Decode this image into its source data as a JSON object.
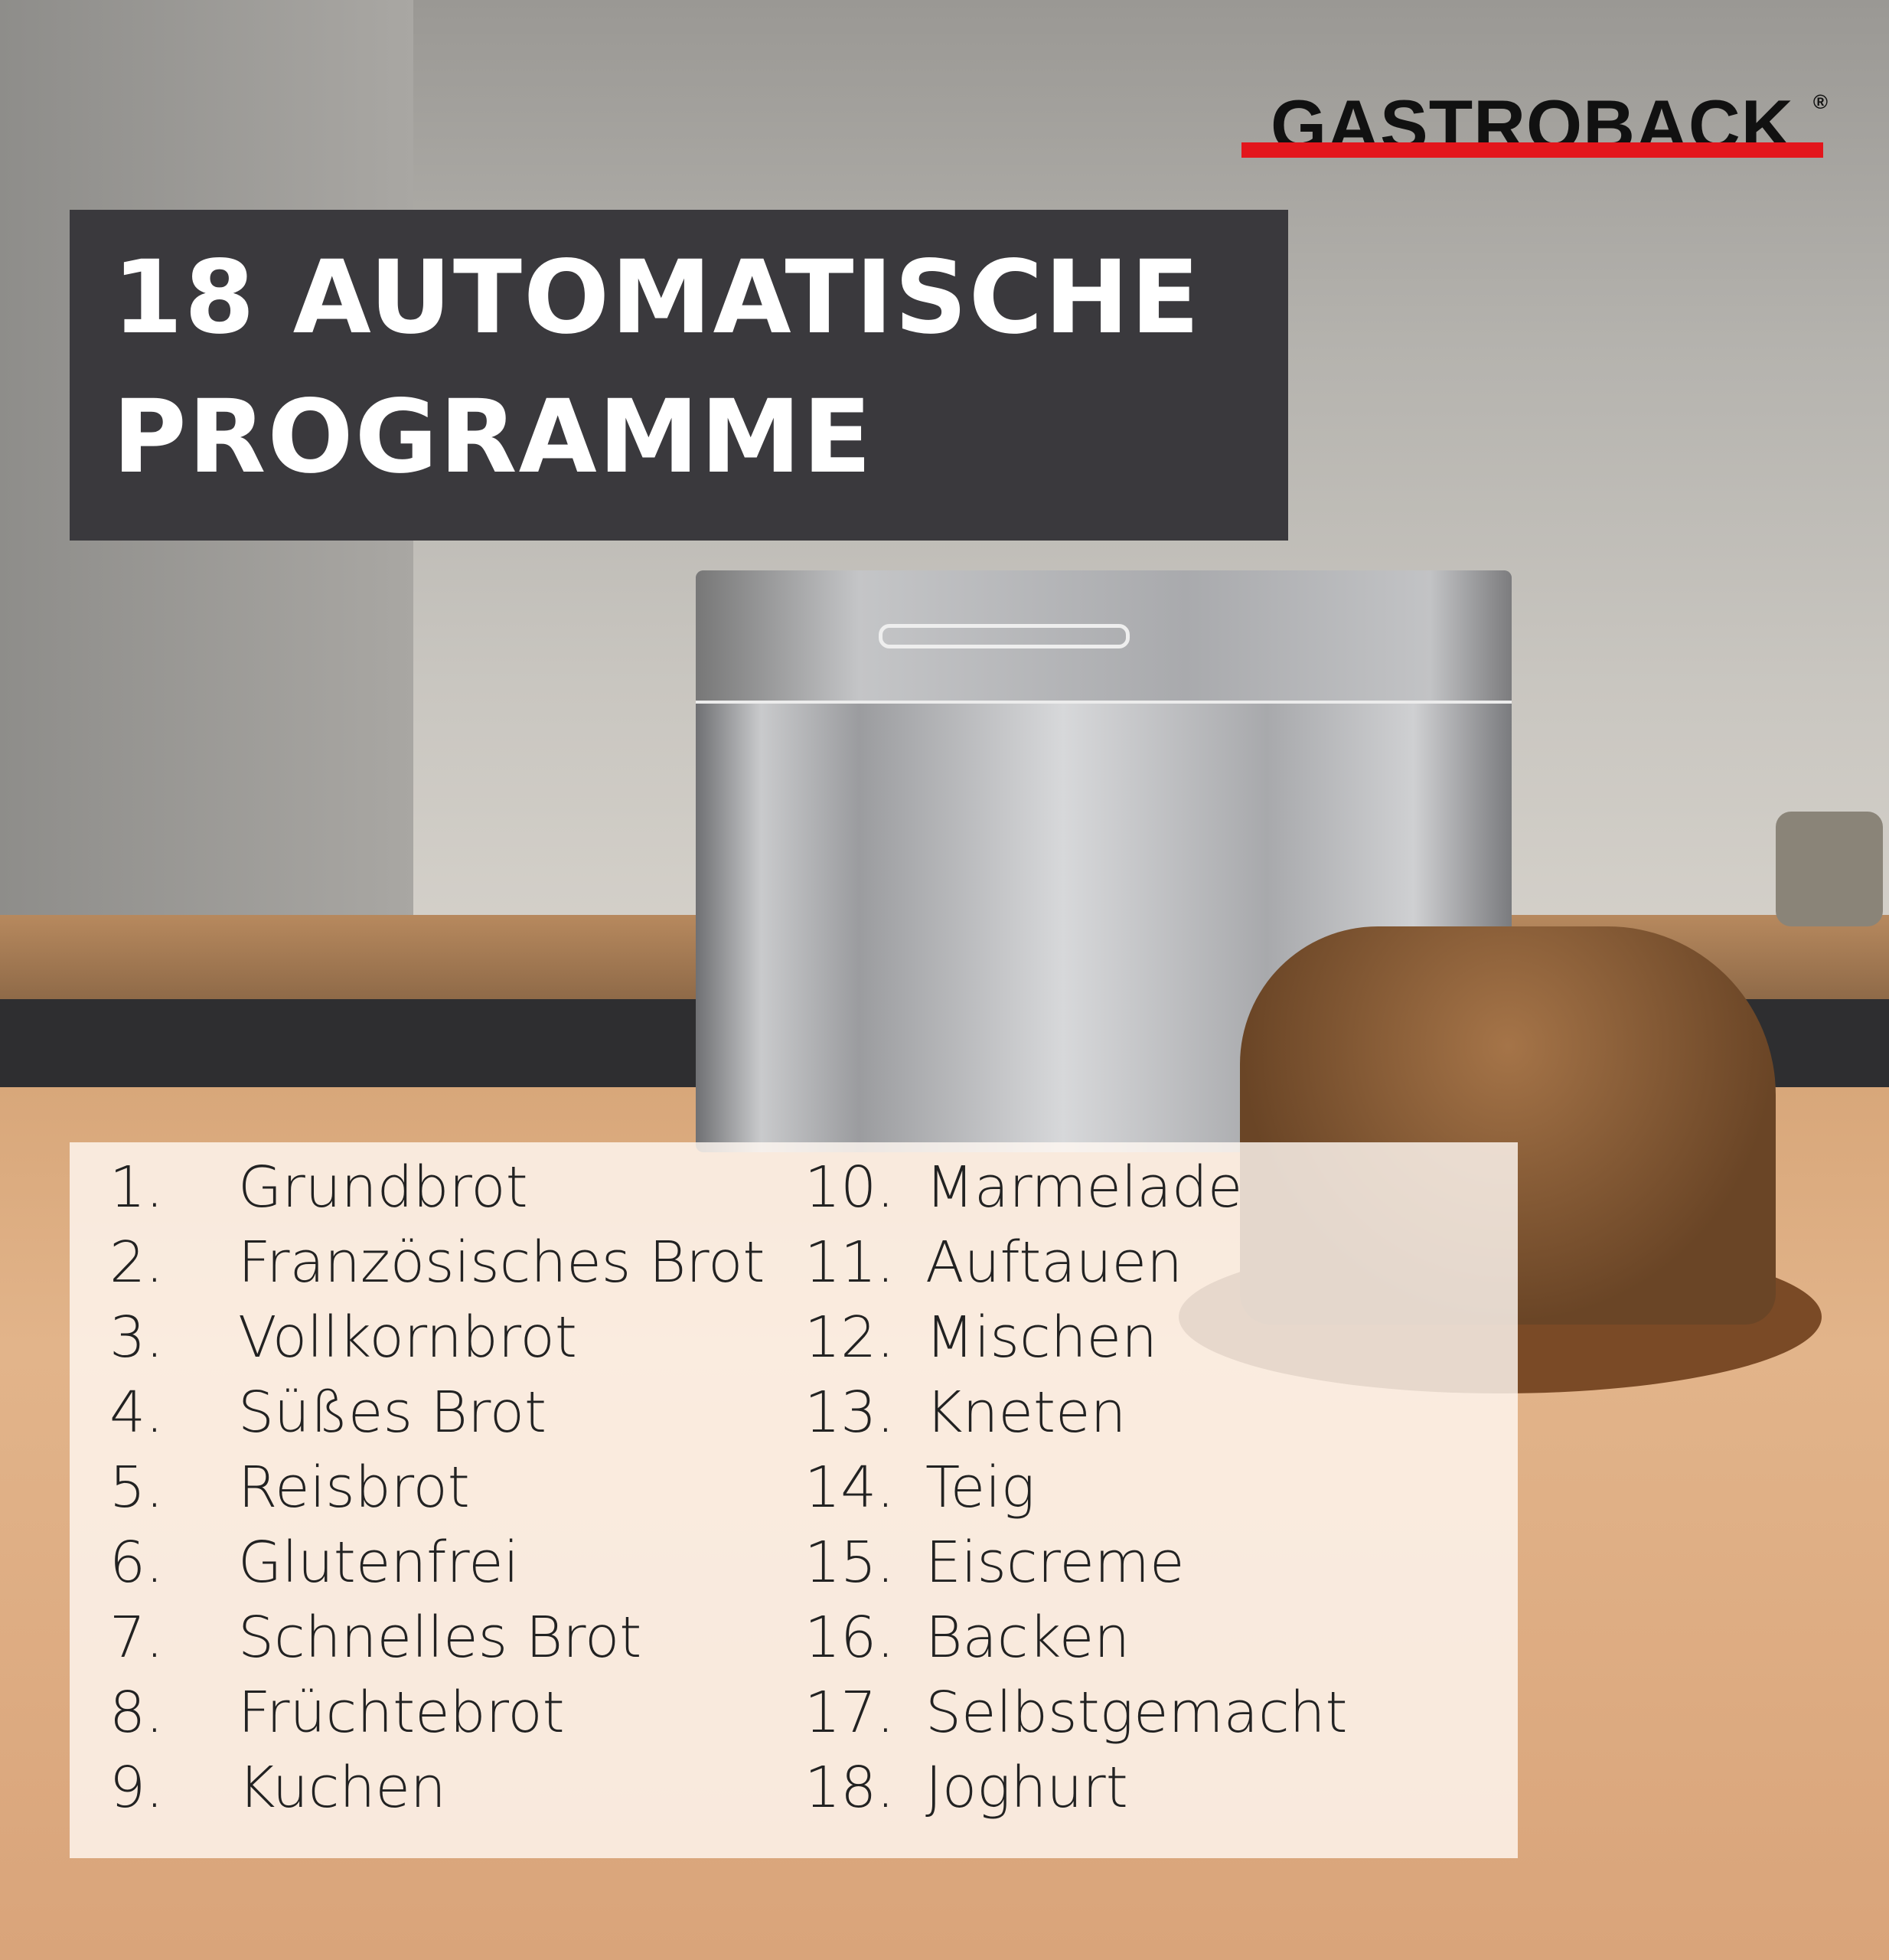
{
  "brand": {
    "logo_text": "GASTROBACK",
    "registered": "®",
    "accent_color": "#e3161c"
  },
  "headline": {
    "line1": "18 AUTOMATISCHE",
    "line2": "PROGRAMME"
  },
  "programs": [
    {
      "num": "1.",
      "name": "Grundbrot"
    },
    {
      "num": "2.",
      "name": "Französisches Brot"
    },
    {
      "num": "3.",
      "name": "Vollkornbrot"
    },
    {
      "num": "4.",
      "name": "Süßes Brot"
    },
    {
      "num": "5.",
      "name": "Reisbrot"
    },
    {
      "num": "6.",
      "name": "Glutenfrei"
    },
    {
      "num": "7.",
      "name": "Schnelles Brot"
    },
    {
      "num": "8.",
      "name": "Früchtebrot"
    },
    {
      "num": "9.",
      "name": "Kuchen"
    },
    {
      "num": "10.",
      "name": "Marmelade"
    },
    {
      "num": "11.",
      "name": "Auftauen"
    },
    {
      "num": "12.",
      "name": "Mischen"
    },
    {
      "num": "13.",
      "name": "Kneten"
    },
    {
      "num": "14.",
      "name": "Teig"
    },
    {
      "num": "15.",
      "name": "Eiscreme"
    },
    {
      "num": "16.",
      "name": "Backen"
    },
    {
      "num": "17.",
      "name": "Selbstgemacht"
    },
    {
      "num": "18.",
      "name": "Joghurt"
    }
  ]
}
